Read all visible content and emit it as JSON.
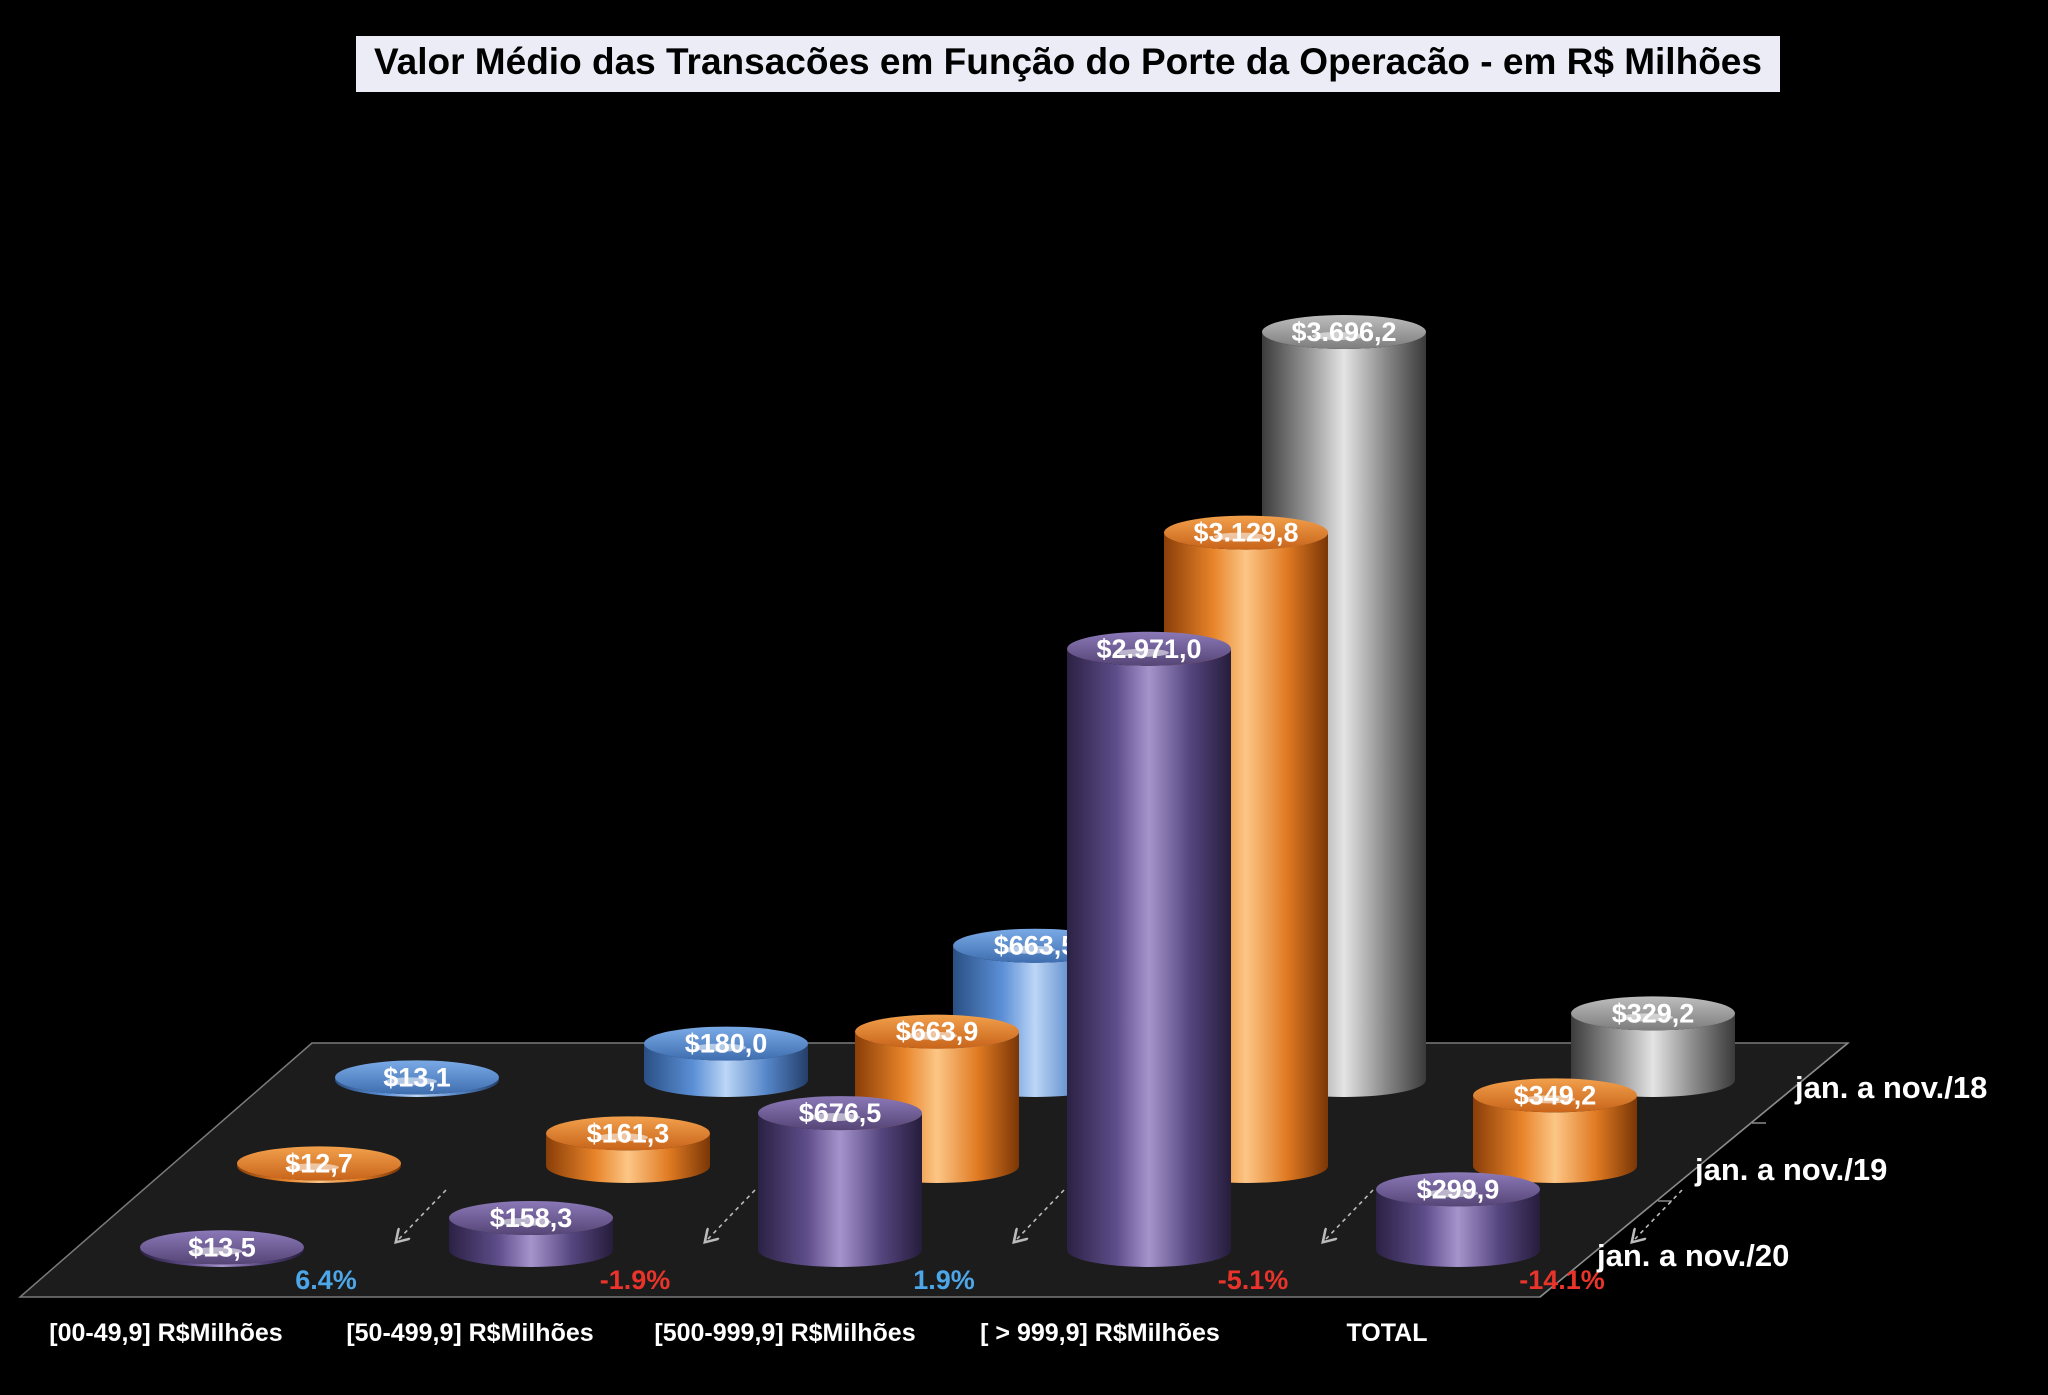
{
  "chart_data": {
    "type": "bar",
    "title": "Valor Médio das Transacões em Função do Porte da Operacão - em R$ Milhões",
    "categories": [
      "[00-49,9] R$Milhões",
      "[50-499,9] R$Milhões",
      "[500-999,9] R$Milhões",
      "[ > 999,9] R$Milhões",
      "TOTAL"
    ],
    "series": [
      {
        "name": "jan. a nov./18",
        "values": [
          13.1,
          180.0,
          663.5,
          3696.2,
          329.2
        ],
        "labels": [
          "$13,1",
          "$180,0",
          "$663,5",
          "$3.696,2",
          "$329,2"
        ]
      },
      {
        "name": "jan. a nov./19",
        "values": [
          12.7,
          161.3,
          663.9,
          3129.8,
          349.2
        ],
        "labels": [
          "$12,7",
          "$161,3",
          "$663,9",
          "$3.129,8",
          "$349,2"
        ]
      },
      {
        "name": "jan. a nov./20",
        "values": [
          13.5,
          158.3,
          676.5,
          2971.0,
          299.9
        ],
        "labels": [
          "$13,5",
          "$158,3",
          "$676,5",
          "$2.971,0",
          "$299,9"
        ]
      }
    ],
    "variation": {
      "labels": [
        "6.4%",
        "-1.9%",
        "1.9%",
        "-5.1%",
        "-14.1%"
      ],
      "values": [
        6.4,
        -1.9,
        1.9,
        -5.1,
        -14.1
      ]
    },
    "chart_style": "3d-cylinder",
    "grid": false
  },
  "colors": {
    "background": "#000000",
    "series_18_total": "#9a9a9a",
    "series_18_small": "#5b8fd6",
    "series_19": "#e8842a",
    "series_20": "#6d5a9a",
    "positive_pct": "#4da6e8",
    "negative_pct": "#e8342a"
  }
}
